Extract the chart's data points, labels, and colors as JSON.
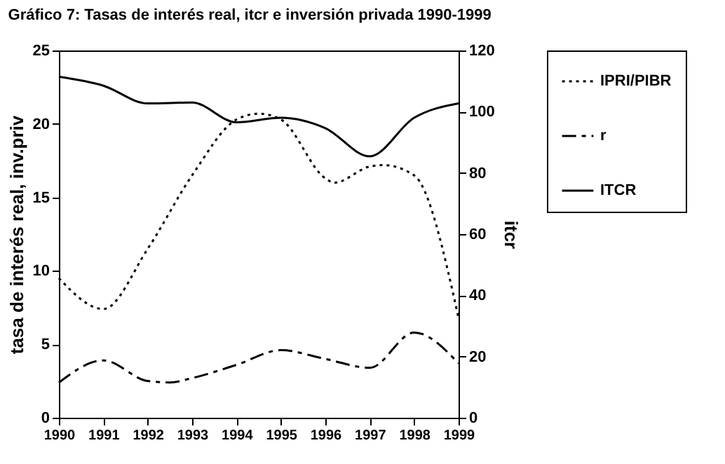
{
  "chart_data": {
    "type": "line",
    "title": "Gráfico 7: Tasas de interés real, itcr e inversión privada 1990-1999",
    "ylabel": "tasa de interés real, inv.priv",
    "y2label": "itcr",
    "xlim": [
      1990,
      1999
    ],
    "xticks": [
      1990,
      1991,
      1992,
      1993,
      1994,
      1995,
      1996,
      1997,
      1998,
      1999
    ],
    "ylim": [
      0,
      25
    ],
    "yticks": [
      0,
      5,
      10,
      15,
      20,
      25
    ],
    "y2lim": [
      0,
      120
    ],
    "y2ticks": [
      0,
      20,
      40,
      60,
      80,
      100,
      120
    ],
    "grid": false,
    "legend": "right",
    "marker": "none",
    "series": [
      {
        "name": "IPRI/PIBR",
        "color": "#000000",
        "line_style": "dotted",
        "x": [
          1990,
          1991,
          1992,
          1993,
          1994,
          1994.5,
          1995,
          1996,
          1996.2,
          1997,
          1997.3,
          1998,
          1999
        ],
        "values": [
          9.5,
          7.4,
          11.5,
          16.5,
          20.3,
          20.7,
          20.3,
          16.3,
          16.0,
          17.1,
          17.2,
          16.5,
          6.8
        ]
      },
      {
        "name": "r",
        "color": "#000000",
        "line_style": "dashed",
        "x": [
          1990,
          1991,
          1992,
          1992.5,
          1993,
          1994,
          1995,
          1996,
          1997,
          1998,
          1999
        ],
        "values": [
          2.4,
          3.9,
          2.5,
          2.4,
          2.7,
          3.6,
          4.6,
          4.0,
          3.4,
          5.8,
          3.7
        ]
      },
      {
        "name": "ITCR",
        "color": "#000000",
        "line_style": "solid",
        "axis": "y2",
        "x": [
          1990,
          1991,
          1992,
          1993,
          1994,
          1995,
          1996,
          1997,
          1998,
          1999
        ],
        "values": [
          111.4,
          108.5,
          102.7,
          103.0,
          96.5,
          98.0,
          94.6,
          85.4,
          98.0,
          102.7
        ]
      }
    ]
  }
}
